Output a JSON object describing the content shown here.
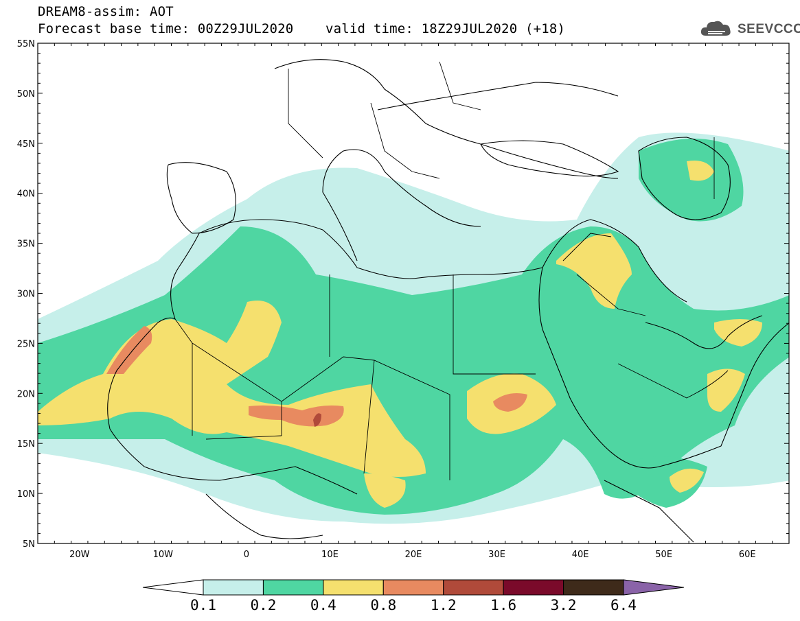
{
  "header": {
    "line1": "DREAM8-assim: AOT",
    "line2": "Forecast base time: 00Z29JUL2020    valid time: 18Z29JUL2020 (+18)"
  },
  "logo": {
    "text": "SEEVCCC",
    "icon": "cloud-icon"
  },
  "map": {
    "lon_range": [
      -25,
      65
    ],
    "lat_range": [
      5,
      55
    ],
    "x_ticks": [
      "20W",
      "10W",
      "0",
      "10E",
      "20E",
      "30E",
      "40E",
      "50E",
      "60E"
    ],
    "y_ticks": [
      "55N",
      "50N",
      "45N",
      "40N",
      "35N",
      "30N",
      "25N",
      "20N",
      "15N",
      "10N",
      "5N"
    ]
  },
  "colorbar": {
    "labels": [
      "0.1",
      "0.2",
      "0.4",
      "0.8",
      "1.2",
      "1.6",
      "3.2",
      "6.4"
    ],
    "colors": [
      "#c6efea",
      "#4fd6a2",
      "#f5e06e",
      "#e88a60",
      "#b04a3a",
      "#7a0a2a",
      "#3e2a1a"
    ],
    "over_color": "#8a63a8",
    "under_color": "#ffffff"
  }
}
